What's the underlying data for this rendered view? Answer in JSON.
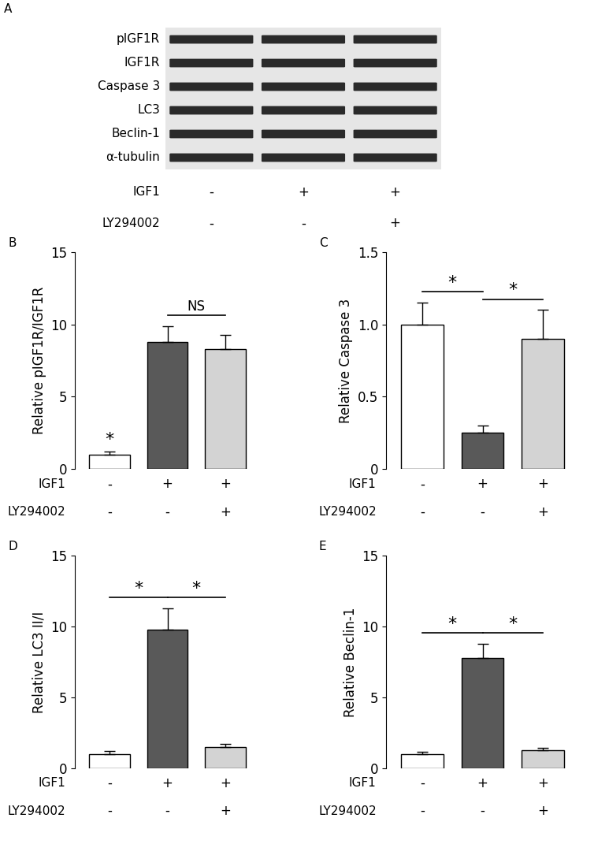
{
  "blot": {
    "panel": "A",
    "rows": [
      "pIGF1R",
      "IGF1R",
      "Caspase 3",
      "LC3",
      "Beclin-1",
      "α-tubulin"
    ],
    "treatments": [
      {
        "name": "IGF1",
        "signs": [
          "-",
          "+",
          "+"
        ]
      },
      {
        "name": "LY294002",
        "signs": [
          "-",
          "-",
          "+"
        ]
      }
    ]
  },
  "chart_data": [
    {
      "type": "bar",
      "panel": "B",
      "y_label": "Relative pIGF1R/IGF1R",
      "categories": [
        null,
        null,
        null
      ],
      "values": [
        1.0,
        8.8,
        8.3
      ],
      "errors": [
        0.2,
        1.1,
        1.0
      ],
      "colors": [
        "#ffffff",
        "#595959",
        "#d3d3d3"
      ],
      "ylim": [
        0,
        15
      ],
      "yticks": [
        0,
        5,
        10,
        15
      ],
      "treatments": [
        {
          "name": "IGF1",
          "signs": [
            "-",
            "+",
            "+"
          ]
        },
        {
          "name": "LY294002",
          "signs": [
            "-",
            "-",
            "+"
          ]
        }
      ],
      "significance": [
        {
          "at": 0,
          "label": "*"
        },
        {
          "from": 1,
          "to": 2,
          "label": "NS"
        }
      ]
    },
    {
      "type": "bar",
      "panel": "C",
      "y_label": "Relative Caspase 3",
      "categories": [
        null,
        null,
        null
      ],
      "values": [
        1.0,
        0.25,
        0.9
      ],
      "errors": [
        0.15,
        0.05,
        0.2
      ],
      "colors": [
        "#ffffff",
        "#595959",
        "#d3d3d3"
      ],
      "ylim": [
        0,
        1.5
      ],
      "yticks": [
        0,
        0.5,
        {
          "value": 1,
          "label": "1.0"
        },
        1.5
      ],
      "treatments": [
        {
          "name": "IGF1",
          "signs": [
            "-",
            "+",
            "+"
          ]
        },
        {
          "name": "LY294002",
          "signs": [
            "-",
            "-",
            "+"
          ]
        }
      ],
      "significance": [
        {
          "from": 0,
          "to": 1,
          "label": "*"
        },
        {
          "from": 1,
          "to": 2,
          "label": "*"
        }
      ]
    },
    {
      "type": "bar",
      "panel": "D",
      "y_label": "Relative LC3 II/I",
      "categories": [
        null,
        null,
        null
      ],
      "values": [
        1.0,
        9.8,
        1.5
      ],
      "errors": [
        0.2,
        1.5,
        0.25
      ],
      "colors": [
        "#ffffff",
        "#595959",
        "#d3d3d3"
      ],
      "ylim": [
        0,
        15
      ],
      "yticks": [
        0,
        5,
        10,
        15
      ],
      "treatments": [
        {
          "name": "IGF1",
          "signs": [
            "-",
            "+",
            "+"
          ]
        },
        {
          "name": "LY294002",
          "signs": [
            "-",
            "-",
            "+"
          ]
        }
      ],
      "significance": [
        {
          "from": 0,
          "to": 1,
          "label": "*"
        },
        {
          "from": 1,
          "to": 2,
          "label": "*"
        }
      ]
    },
    {
      "type": "bar",
      "panel": "E",
      "y_label": "Relative Beclin-1",
      "categories": [
        null,
        null,
        null
      ],
      "values": [
        1.0,
        7.8,
        1.3
      ],
      "errors": [
        0.15,
        1.0,
        0.15
      ],
      "colors": [
        "#ffffff",
        "#595959",
        "#d3d3d3"
      ],
      "ylim": [
        0,
        15
      ],
      "yticks": [
        0,
        5,
        10,
        15
      ],
      "treatments": [
        {
          "name": "IGF1",
          "signs": [
            "-",
            "+",
            "+"
          ]
        },
        {
          "name": "LY294002",
          "signs": [
            "-",
            "-",
            "+"
          ]
        }
      ],
      "significance": [
        {
          "from": 0,
          "to": 1,
          "label": "*"
        },
        {
          "from": 1,
          "to": 2,
          "label": "*"
        }
      ]
    }
  ]
}
